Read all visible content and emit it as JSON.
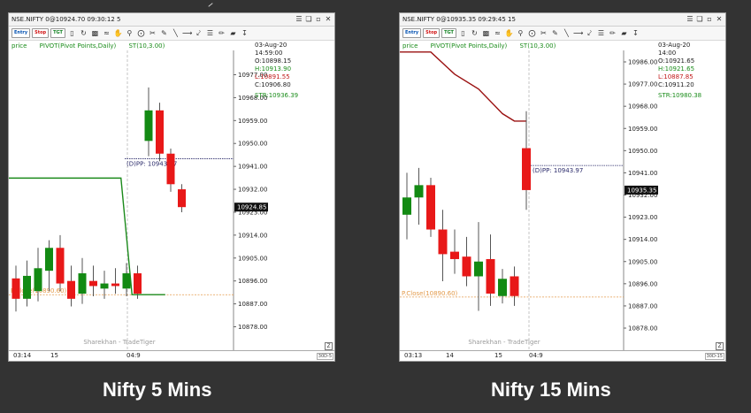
{
  "toolbar": {
    "buttons": [
      "Entry",
      "Stop",
      "TGT"
    ],
    "icons": [
      "candlestick-icon",
      "refresh-icon",
      "bar-chart-icon",
      "line-chart-icon",
      "pan-icon",
      "zoom-icon",
      "crosshair-icon",
      "scissors-icon",
      "pencil-icon",
      "trendline-icon",
      "arrow-icon",
      "fan-icon",
      "ruler-icon",
      "brush-icon",
      "bar-icon",
      "down-arrow-icon"
    ]
  },
  "window_controls": [
    "menu-icon",
    "restore-icon",
    "minimize-icon",
    "close-icon"
  ],
  "charts": [
    {
      "title": "NSE.NIFTY 0@10924.70 09:30:12 5",
      "caption": "Nifty 5 Mins",
      "indicators": [
        "price",
        "PIVOT(Pivot Points,Daily)",
        "ST(10,3.00)"
      ],
      "ohlc": {
        "date": "03-Aug-20",
        "time": "14:59:00",
        "o": "O:10898.15",
        "h": "H:10913.90",
        "l": "L:10891.55",
        "c": "C:10906.80",
        "str": "STR:10936.39"
      },
      "yticks": [
        10977,
        10968,
        10959,
        10950,
        10941,
        10932,
        10923,
        10914,
        10905,
        10896,
        10887,
        10878
      ],
      "ytick_labels": [
        "10977.00",
        "10968.00",
        "10959.00",
        "10950.00",
        "10941.00",
        "10932.00",
        "10923.00",
        "10914.00",
        "10905.00",
        "10896.00",
        "10887.00",
        "10878.00"
      ],
      "price_tag": "10924.85",
      "pivot_label": "(D)PP: 10943.97",
      "pivot_value": 10943.97,
      "prev_close_label": "P.Close(10890.60)",
      "prev_close_value": 10890.6,
      "watermark": "Sharekhan - TradeTiger",
      "xlabels": [
        "03:14",
        "15",
        "04:9"
      ],
      "corner": "30D-5",
      "z_label": "Z",
      "candles": [
        {
          "o": 10897,
          "h": 10902,
          "l": 10884,
          "c": 10889
        },
        {
          "o": 10889,
          "h": 10904,
          "l": 10886,
          "c": 10898
        },
        {
          "o": 10892,
          "h": 10909,
          "l": 10888,
          "c": 10901
        },
        {
          "o": 10900,
          "h": 10912,
          "l": 10892,
          "c": 10909
        },
        {
          "o": 10909,
          "h": 10914,
          "l": 10892,
          "c": 10895
        },
        {
          "o": 10896,
          "h": 10902,
          "l": 10886,
          "c": 10889
        },
        {
          "o": 10891,
          "h": 10905,
          "l": 10887,
          "c": 10899
        },
        {
          "o": 10896,
          "h": 10902,
          "l": 10890,
          "c": 10894
        },
        {
          "o": 10893,
          "h": 10900,
          "l": 10889,
          "c": 10895
        },
        {
          "o": 10895,
          "h": 10901,
          "l": 10891,
          "c": 10894
        },
        {
          "o": 10893,
          "h": 10903,
          "l": 10890,
          "c": 10899
        },
        {
          "o": 10899,
          "h": 10902,
          "l": 10889,
          "c": 10891
        },
        {
          "o": 10951,
          "h": 10972,
          "l": 10945,
          "c": 10963
        },
        {
          "o": 10963,
          "h": 10966,
          "l": 10943,
          "c": 10946
        },
        {
          "o": 10946,
          "h": 10948,
          "l": 10931,
          "c": 10934
        },
        {
          "o": 10932,
          "h": 10934,
          "l": 10923,
          "c": 10925
        }
      ],
      "supertrend": [
        {
          "i": -1,
          "v": 10936.4
        },
        {
          "i": 9.5,
          "v": 10936.4
        },
        {
          "i": 10.5,
          "v": 10890.6
        },
        {
          "i": 13.5,
          "v": 10890.6
        }
      ],
      "supertrend_color": "#1b8a1b"
    },
    {
      "title": "NSE.NIFTY 0@10935.35 09:29:45 15",
      "caption": "Nifty 15 Mins",
      "indicators": [
        "price",
        "PIVOT(Pivot Points,Daily)",
        "ST(10,3.00)"
      ],
      "ohlc": {
        "date": "03-Aug-20",
        "time": "14:00",
        "o": "O:10921.65",
        "h": "H:10921.65",
        "l": "L:10887.85",
        "c": "C:10911.20",
        "str": "STR:10980.38"
      },
      "yticks": [
        10986,
        10977,
        10968,
        10959,
        10950,
        10941,
        10932,
        10923,
        10914,
        10905,
        10896,
        10887,
        10878
      ],
      "ytick_labels": [
        "10986.00",
        "10977.00",
        "10968.00",
        "10959.00",
        "10950.00",
        "10941.00",
        "10932.00",
        "10923.00",
        "10914.00",
        "10905.00",
        "10896.00",
        "10887.00",
        "10878.00"
      ],
      "price_tag": "10935.35",
      "pivot_label": "(D)PP: 10943.97",
      "pivot_value": 10943.97,
      "prev_close_label": "P.Close(10890.60)",
      "prev_close_value": 10890.6,
      "watermark": "Sharekhan - TradeTiger",
      "xlabels": [
        "03:13",
        "14",
        "15",
        "04:9"
      ],
      "corner": "30D-15",
      "z_label": "Z",
      "candles": [
        {
          "o": 10924,
          "h": 10941,
          "l": 10914,
          "c": 10931
        },
        {
          "o": 10931,
          "h": 10943,
          "l": 10920,
          "c": 10936
        },
        {
          "o": 10936,
          "h": 10939,
          "l": 10915,
          "c": 10918
        },
        {
          "o": 10918,
          "h": 10926,
          "l": 10897,
          "c": 10908
        },
        {
          "o": 10909,
          "h": 10918,
          "l": 10900,
          "c": 10906
        },
        {
          "o": 10907,
          "h": 10915,
          "l": 10895,
          "c": 10899
        },
        {
          "o": 10899,
          "h": 10921,
          "l": 10885,
          "c": 10905
        },
        {
          "o": 10906,
          "h": 10916,
          "l": 10887,
          "c": 10892
        },
        {
          "o": 10891,
          "h": 10902,
          "l": 10888,
          "c": 10898
        },
        {
          "o": 10899,
          "h": 10903,
          "l": 10887,
          "c": 10891
        },
        {
          "o": 10951,
          "h": 10966,
          "l": 10926,
          "c": 10934
        }
      ],
      "supertrend": [
        {
          "i": -1,
          "v": 10990
        },
        {
          "i": 2,
          "v": 10990
        },
        {
          "i": 4,
          "v": 10981
        },
        {
          "i": 6,
          "v": 10975
        },
        {
          "i": 8,
          "v": 10965
        },
        {
          "i": 9,
          "v": 10962
        },
        {
          "i": 10,
          "v": 10962
        }
      ],
      "supertrend_color": "#9a1010"
    }
  ],
  "colors": {
    "bull": "#138a13",
    "bear": "#e81818",
    "pivot": "#2a2a6a",
    "pclose": "#e39a4a",
    "tag_bg": "#111111"
  }
}
